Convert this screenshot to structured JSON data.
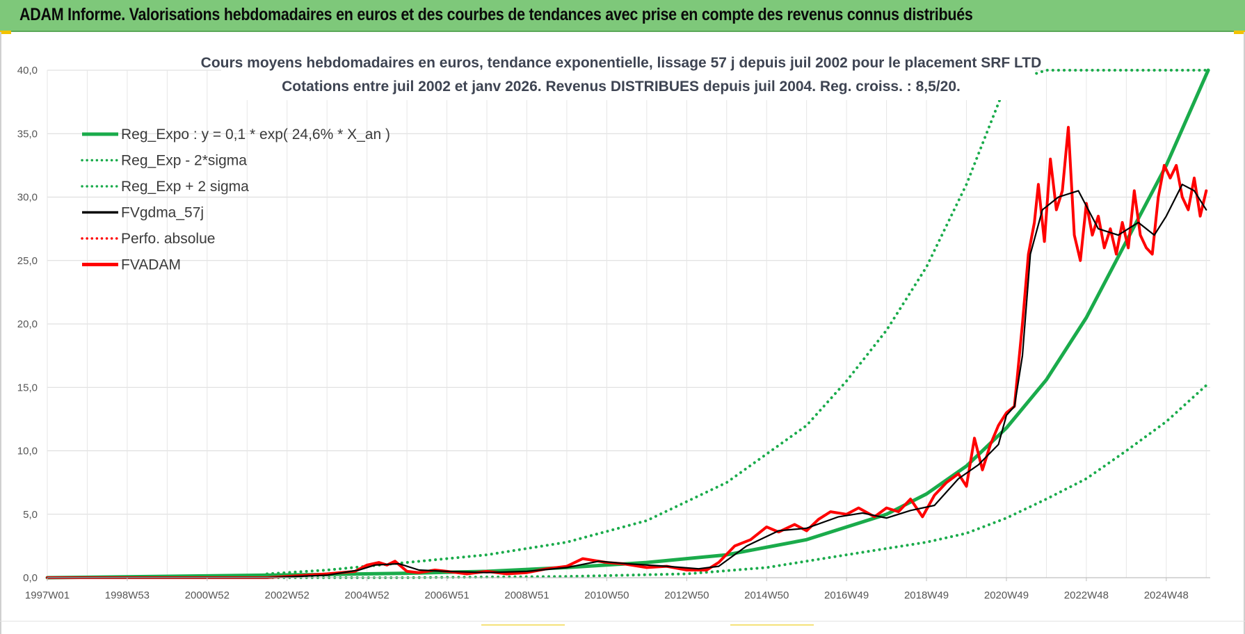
{
  "header": {
    "title": "ADAM Informe. Valorisations hebdomadaires en euros et des courbes de tendances avec prise en compte des revenus connus distribués"
  },
  "colors": {
    "banner": "#7ec87a",
    "reg_expo": "#1aab4b",
    "fvgdma": "#000000",
    "fvadam": "#ff0000",
    "grid": "#d9d9d9"
  },
  "chart_data": {
    "type": "line",
    "title_line1": "Cours moyens hebdomadaires en euros, tendance exponentielle, lissage 57 j depuis juil 2002 pour le placement SRF LTD",
    "title_line2": "Cotations entre juil 2002 et janv 2026. Revenus DISTRIBUES depuis juil 2004. Reg. croiss. : 8,5/20.",
    "x_start_year": 1997.0,
    "x_end_year": 2026.1,
    "x_tick_labels": [
      "1997W01",
      "1998W53",
      "2000W52",
      "2002W52",
      "2004W52",
      "2006W51",
      "2008W51",
      "2010W50",
      "2012W50",
      "2014W50",
      "2016W49",
      "2018W49",
      "2020W49",
      "2022W48",
      "2024W48"
    ],
    "x_tick_years": [
      1997.0,
      1999.0,
      2001.0,
      2003.0,
      2005.0,
      2007.0,
      2009.0,
      2011.0,
      2013.0,
      2015.0,
      2017.0,
      2019.0,
      2021.0,
      2023.0,
      2025.0
    ],
    "y_tick_labels": [
      "0,0",
      "5,0",
      "10,0",
      "15,0",
      "20,0",
      "25,0",
      "30,0",
      "35,0",
      "40,0"
    ],
    "ylim": [
      0,
      40
    ],
    "legend": [
      {
        "label": "Reg_Expo : y = 0,1 * exp( 24,6% *  X_an )",
        "style": "solid-thick",
        "color": "#1aab4b"
      },
      {
        "label": "Reg_Exp - 2*sigma",
        "style": "dotted",
        "color": "#1aab4b"
      },
      {
        "label": "Reg_Exp + 2 sigma",
        "style": "dotted",
        "color": "#1aab4b"
      },
      {
        "label": "FVgdma_57j",
        "style": "solid",
        "color": "#000000"
      },
      {
        "label": "Perfo. absolue",
        "style": "dotted",
        "color": "#ff0000"
      },
      {
        "label": "FVADAM",
        "style": "solid-thick",
        "color": "#ff0000"
      }
    ],
    "series": [
      {
        "name": "Reg_Expo",
        "x": [
          1997.0,
          2002.5,
          2004,
          2006,
          2008,
          2010,
          2012,
          2014,
          2016,
          2018,
          2019,
          2020,
          2021,
          2022,
          2023,
          2024,
          2025,
          2026.05
        ],
        "y": [
          0.0,
          0.2,
          0.25,
          0.35,
          0.5,
          0.8,
          1.2,
          1.8,
          3.0,
          5.0,
          6.6,
          8.8,
          11.8,
          15.6,
          20.5,
          26.5,
          32.5,
          40.0
        ]
      },
      {
        "name": "Reg_Exp + 2 sigma",
        "x": [
          2002.5,
          2004,
          2006,
          2008,
          2010,
          2012,
          2014,
          2016,
          2017,
          2018,
          2019,
          2020,
          2021,
          2022,
          2023,
          2026.05
        ],
        "y": [
          0.3,
          0.6,
          1.2,
          1.8,
          2.8,
          4.5,
          7.5,
          12.0,
          15.5,
          19.5,
          24.5,
          31.0,
          39.0,
          40.0,
          40.0,
          40.0
        ]
      },
      {
        "name": "Reg_Exp - 2*sigma",
        "x": [
          2002.5,
          2006,
          2010,
          2013,
          2015,
          2017,
          2019,
          2020,
          2021,
          2022,
          2023,
          2024,
          2025,
          2026.05
        ],
        "y": [
          0.0,
          0.0,
          0.1,
          0.3,
          0.8,
          1.8,
          2.8,
          3.5,
          4.7,
          6.2,
          7.8,
          10.0,
          12.3,
          15.3
        ]
      },
      {
        "name": "FVgdma_57j",
        "x": [
          1997.0,
          2002.5,
          2004.0,
          2004.8,
          2005.2,
          2005.8,
          2006.3,
          2007,
          2008,
          2009,
          2010,
          2010.8,
          2011.5,
          2012.5,
          2013.3,
          2013.8,
          2014.5,
          2015.3,
          2016.0,
          2016.8,
          2017.4,
          2018.0,
          2018.6,
          2019.2,
          2019.8,
          2020.3,
          2020.8,
          2021.0,
          2021.2,
          2021.4,
          2021.6,
          2021.9,
          2022.3,
          2022.8,
          2023.3,
          2023.8,
          2024.3,
          2024.7,
          2025.0,
          2025.4,
          2025.7,
          2026.0
        ],
        "y": [
          0.0,
          0.0,
          0.2,
          0.6,
          1.0,
          1.1,
          0.6,
          0.5,
          0.4,
          0.5,
          0.8,
          1.3,
          1.1,
          0.9,
          0.7,
          0.9,
          2.5,
          3.7,
          3.9,
          4.8,
          5.1,
          4.7,
          5.3,
          5.7,
          7.8,
          8.9,
          10.5,
          12.8,
          13.5,
          17.5,
          25.5,
          29.0,
          30.0,
          30.5,
          27.5,
          27.0,
          28.0,
          27.0,
          28.5,
          31.0,
          30.5,
          29.0
        ]
      },
      {
        "name": "FVADAM",
        "x": [
          1997.0,
          2002.5,
          2004.0,
          2004.7,
          2005.0,
          2005.3,
          2005.5,
          2005.7,
          2006.0,
          2006.3,
          2006.7,
          2007,
          2007.5,
          2008,
          2008.5,
          2009,
          2009.5,
          2010,
          2010.4,
          2010.8,
          2011.0,
          2011.4,
          2012.0,
          2012.5,
          2013.0,
          2013.5,
          2013.8,
          2014.2,
          2014.6,
          2015.0,
          2015.3,
          2015.7,
          2016.0,
          2016.3,
          2016.6,
          2017.0,
          2017.3,
          2017.7,
          2018.0,
          2018.3,
          2018.6,
          2018.9,
          2019.2,
          2019.5,
          2019.8,
          2020.0,
          2020.2,
          2020.4,
          2020.6,
          2020.8,
          2021.0,
          2021.2,
          2021.4,
          2021.55,
          2021.7,
          2021.8,
          2021.95,
          2022.1,
          2022.25,
          2022.4,
          2022.55,
          2022.7,
          2022.85,
          2023.0,
          2023.15,
          2023.3,
          2023.45,
          2023.6,
          2023.75,
          2023.9,
          2024.05,
          2024.2,
          2024.35,
          2024.5,
          2024.65,
          2024.8,
          2024.95,
          2025.1,
          2025.25,
          2025.4,
          2025.55,
          2025.7,
          2025.85,
          2026.0
        ],
        "y": [
          0.0,
          0.0,
          0.3,
          0.5,
          1.0,
          1.2,
          1.0,
          1.3,
          0.5,
          0.4,
          0.6,
          0.5,
          0.3,
          0.5,
          0.3,
          0.4,
          0.7,
          0.9,
          1.5,
          1.3,
          1.2,
          1.1,
          0.8,
          0.9,
          0.6,
          0.6,
          1.2,
          2.5,
          3.0,
          4.0,
          3.6,
          4.2,
          3.7,
          4.6,
          5.2,
          5.0,
          5.5,
          4.8,
          5.5,
          5.2,
          6.2,
          4.8,
          6.5,
          7.5,
          8.2,
          7.2,
          11.0,
          8.5,
          10.5,
          12.0,
          13.0,
          13.5,
          20.0,
          25.5,
          28.0,
          31.0,
          26.5,
          33.0,
          29.0,
          30.5,
          35.5,
          27.0,
          25.0,
          29.5,
          27.0,
          28.5,
          26.0,
          27.5,
          25.5,
          28.0,
          26.0,
          30.5,
          27.0,
          26.0,
          25.5,
          30.0,
          32.5,
          31.5,
          32.5,
          30.0,
          29.0,
          31.5,
          28.5,
          30.5
        ]
      }
    ]
  }
}
